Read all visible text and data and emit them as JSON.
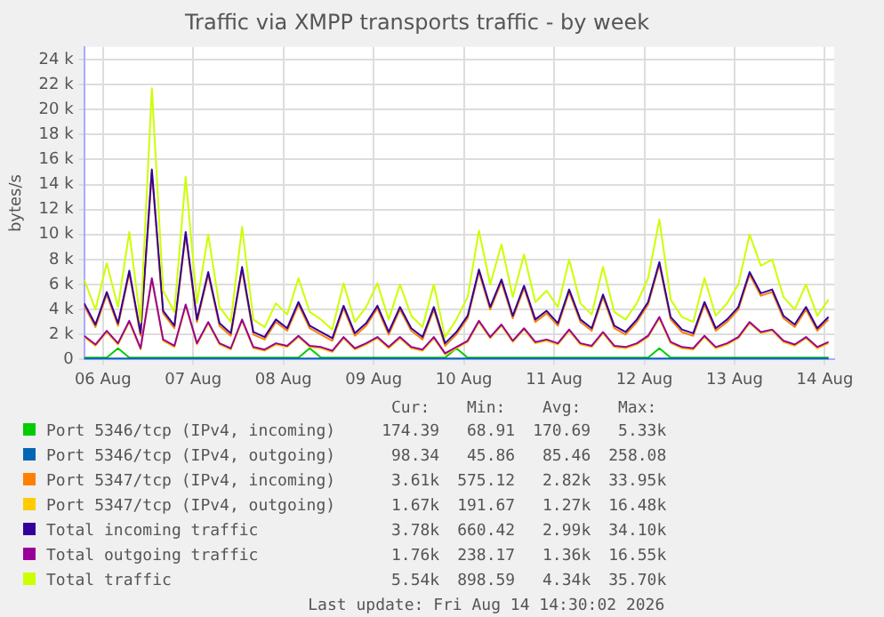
{
  "chart_data": {
    "type": "line",
    "title": "Traffic via XMPP transports traffic - by week",
    "ylabel": "bytes/s",
    "x": [
      "2026-08-06T07:00",
      "2026-08-06T10:00",
      "2026-08-06T13:00",
      "2026-08-06T16:00",
      "2026-08-06T19:00",
      "2026-08-06T22:00",
      "2026-08-07T01:00",
      "2026-08-07T04:00",
      "2026-08-07T07:00",
      "2026-08-07T10:00",
      "2026-08-07T13:00",
      "2026-08-07T16:00",
      "2026-08-07T19:00",
      "2026-08-07T22:00",
      "2026-08-08T01:00",
      "2026-08-08T04:00",
      "2026-08-08T07:00",
      "2026-08-08T10:00",
      "2026-08-08T13:00",
      "2026-08-08T16:00",
      "2026-08-08T19:00",
      "2026-08-08T22:00",
      "2026-08-09T01:00",
      "2026-08-09T04:00",
      "2026-08-09T07:00",
      "2026-08-09T10:00",
      "2026-08-09T13:00",
      "2026-08-09T16:00",
      "2026-08-09T19:00",
      "2026-08-09T22:00",
      "2026-08-10T01:00",
      "2026-08-10T04:00",
      "2026-08-10T07:00",
      "2026-08-10T10:00",
      "2026-08-10T13:00",
      "2026-08-10T16:00",
      "2026-08-10T19:00",
      "2026-08-10T22:00",
      "2026-08-11T01:00",
      "2026-08-11T04:00",
      "2026-08-11T07:00",
      "2026-08-11T10:00",
      "2026-08-11T13:00",
      "2026-08-11T16:00",
      "2026-08-11T19:00",
      "2026-08-11T22:00",
      "2026-08-12T01:00",
      "2026-08-12T04:00",
      "2026-08-12T07:00",
      "2026-08-12T10:00",
      "2026-08-12T13:00",
      "2026-08-12T16:00",
      "2026-08-12T19:00",
      "2026-08-12T22:00",
      "2026-08-13T01:00",
      "2026-08-13T04:00",
      "2026-08-13T07:00",
      "2026-08-13T10:00",
      "2026-08-13T13:00",
      "2026-08-13T16:00",
      "2026-08-13T19:00",
      "2026-08-13T22:00",
      "2026-08-14T01:00",
      "2026-08-14T04:00",
      "2026-08-14T07:00",
      "2026-08-14T10:00",
      "2026-08-14T13:00"
    ],
    "xlim": [
      "2026-08-06T07:00",
      "2026-08-14T14:30"
    ],
    "xticks": [
      {
        "value": "2026-08-06T12:00",
        "label": "06 Aug"
      },
      {
        "value": "2026-08-07T12:00",
        "label": "07 Aug"
      },
      {
        "value": "2026-08-08T12:00",
        "label": "08 Aug"
      },
      {
        "value": "2026-08-09T12:00",
        "label": "09 Aug"
      },
      {
        "value": "2026-08-10T12:00",
        "label": "10 Aug"
      },
      {
        "value": "2026-08-11T12:00",
        "label": "11 Aug"
      },
      {
        "value": "2026-08-12T12:00",
        "label": "12 Aug"
      },
      {
        "value": "2026-08-13T12:00",
        "label": "13 Aug"
      },
      {
        "value": "2026-08-14T12:00",
        "label": "14 Aug"
      }
    ],
    "ylim": [
      0,
      25000
    ],
    "yticks": [
      0,
      {
        "value": 2000,
        "label": "2 k"
      },
      {
        "value": 4000,
        "label": "4 k"
      },
      {
        "value": 6000,
        "label": "6 k"
      },
      {
        "value": 8000,
        "label": "8 k"
      },
      {
        "value": 10000,
        "label": "10 k"
      },
      {
        "value": 12000,
        "label": "12 k"
      },
      {
        "value": 14000,
        "label": "14 k"
      },
      {
        "value": 16000,
        "label": "16 k"
      },
      {
        "value": 18000,
        "label": "18 k"
      },
      {
        "value": 20000,
        "label": "20 k"
      },
      {
        "value": 22000,
        "label": "22 k"
      },
      {
        "value": 24000,
        "label": "24 k"
      }
    ],
    "grid": true,
    "legend": "bottom",
    "series": [
      {
        "name": "Port 5346/tcp (IPv4, incoming)",
        "color": "#00cc00",
        "values": [
          150,
          150,
          150,
          900,
          150,
          150,
          150,
          150,
          150,
          150,
          150,
          150,
          150,
          150,
          150,
          150,
          150,
          150,
          150,
          150,
          900,
          150,
          150,
          150,
          150,
          150,
          150,
          150,
          150,
          150,
          150,
          150,
          150,
          900,
          150,
          150,
          150,
          150,
          150,
          150,
          150,
          150,
          150,
          150,
          150,
          150,
          150,
          150,
          150,
          150,
          150,
          900,
          150,
          150,
          150,
          150,
          150,
          150,
          150,
          150,
          150,
          150,
          150,
          150,
          150,
          150,
          150
        ]
      },
      {
        "name": "Port 5346/tcp (IPv4, outgoing)",
        "color": "#0066b3",
        "values": [
          80,
          80,
          80,
          80,
          80,
          80,
          80,
          80,
          80,
          80,
          80,
          80,
          80,
          80,
          80,
          80,
          80,
          80,
          80,
          80,
          80,
          80,
          80,
          80,
          80,
          80,
          80,
          80,
          80,
          80,
          80,
          80,
          80,
          80,
          80,
          80,
          80,
          80,
          80,
          80,
          80,
          80,
          80,
          80,
          80,
          80,
          80,
          80,
          80,
          80,
          80,
          80,
          80,
          80,
          80,
          80,
          80,
          80,
          80,
          80,
          80,
          80,
          80,
          80,
          80,
          80,
          80
        ]
      },
      {
        "name": "Port 5347/tcp (IPv4, incoming)",
        "color": "#ff8000",
        "values": [
          4300,
          2600,
          5200,
          2700,
          6900,
          1900,
          15000,
          3700,
          2500,
          10000,
          3000,
          6800,
          2700,
          1900,
          7200,
          2000,
          1600,
          3000,
          2300,
          4400,
          2500,
          2000,
          1500,
          4100,
          1900,
          2700,
          4100,
          2000,
          4000,
          2300,
          1600,
          4000,
          1100,
          2000,
          3300,
          7000,
          4000,
          6200,
          3300,
          5700,
          3000,
          3700,
          2700,
          5400,
          3000,
          2300,
          5000,
          2500,
          2000,
          3000,
          4400,
          7600,
          3200,
          2200,
          1900,
          4400,
          2300,
          3000,
          4000,
          6800,
          5100,
          5400,
          3300,
          2600,
          4000,
          2300,
          3200
        ]
      },
      {
        "name": "Port 5347/tcp (IPv4, outgoing)",
        "color": "#ffcc00",
        "values": [
          1800,
          1100,
          2200,
          1200,
          3000,
          800,
          6400,
          1500,
          1000,
          4300,
          1200,
          2900,
          1200,
          800,
          3100,
          900,
          700,
          1200,
          1000,
          1800,
          1000,
          900,
          600,
          1700,
          800,
          1200,
          1700,
          900,
          1700,
          900,
          700,
          1700,
          400,
          900,
          1400,
          3000,
          1700,
          2700,
          1400,
          2400,
          1300,
          1500,
          1200,
          2300,
          1200,
          1000,
          2100,
          1000,
          900,
          1200,
          1800,
          3300,
          1300,
          900,
          800,
          1800,
          900,
          1200,
          1700,
          2900,
          2100,
          2300,
          1400,
          1100,
          1700,
          900,
          1300
        ]
      },
      {
        "name": "Total incoming traffic",
        "color": "#330099",
        "values": [
          4500,
          2800,
          5400,
          2900,
          7100,
          2100,
          15200,
          3900,
          2700,
          10200,
          3200,
          7000,
          2900,
          2100,
          7400,
          2200,
          1800,
          3200,
          2500,
          4600,
          2700,
          2200,
          1700,
          4300,
          2100,
          2900,
          4300,
          2200,
          4200,
          2500,
          1800,
          4200,
          1300,
          2200,
          3500,
          7200,
          4200,
          6400,
          3500,
          5900,
          3200,
          3900,
          2900,
          5600,
          3200,
          2500,
          5200,
          2700,
          2200,
          3200,
          4600,
          7800,
          3400,
          2400,
          2100,
          4600,
          2500,
          3200,
          4200,
          7000,
          5300,
          5600,
          3500,
          2800,
          4200,
          2500,
          3400
        ]
      },
      {
        "name": "Total outgoing traffic",
        "color": "#990099",
        "values": [
          1900,
          1200,
          2300,
          1300,
          3100,
          900,
          6500,
          1600,
          1100,
          4400,
          1300,
          3000,
          1300,
          900,
          3200,
          1000,
          800,
          1300,
          1100,
          1900,
          1100,
          1000,
          700,
          1800,
          900,
          1300,
          1800,
          1000,
          1800,
          1000,
          800,
          1800,
          500,
          1000,
          1500,
          3100,
          1800,
          2800,
          1500,
          2500,
          1400,
          1600,
          1300,
          2400,
          1300,
          1100,
          2200,
          1100,
          1000,
          1300,
          1900,
          3400,
          1400,
          1000,
          900,
          1900,
          1000,
          1300,
          1800,
          3000,
          2200,
          2400,
          1500,
          1200,
          1800,
          1000,
          1400
        ]
      },
      {
        "name": "Total traffic",
        "color": "#ccff00",
        "values": [
          6400,
          4000,
          7700,
          4200,
          10200,
          3000,
          21700,
          5500,
          3800,
          14600,
          4500,
          10000,
          4200,
          3000,
          10600,
          3200,
          2600,
          4500,
          3600,
          6500,
          3800,
          3200,
          2400,
          6100,
          3000,
          4200,
          6100,
          3200,
          6000,
          3500,
          2600,
          6000,
          1800,
          3200,
          5000,
          10300,
          6000,
          9200,
          5000,
          8400,
          4600,
          5500,
          4200,
          8000,
          4500,
          3600,
          7400,
          3800,
          3200,
          4500,
          6500,
          11200,
          4800,
          3400,
          3000,
          6500,
          3500,
          4500,
          6000,
          10000,
          7500,
          8000,
          5000,
          4000,
          6000,
          3500,
          4800
        ]
      }
    ],
    "annotations": [
      "Cur:",
      "Min:",
      "Avg:",
      "Max:",
      "174.39",
      "68.91",
      "170.69",
      "5.33k",
      "98.34",
      "45.86",
      "85.46",
      "258.08",
      "3.61k",
      "575.12",
      "2.82k",
      "33.95k",
      "1.67k",
      "191.67",
      "1.27k",
      "16.48k",
      "3.78k",
      "660.42",
      "2.99k",
      "34.10k",
      "1.76k",
      "238.17",
      "1.36k",
      "16.55k",
      "5.54k",
      "898.59",
      "4.34k",
      "35.70k",
      "Last update: Fri Aug 14 14:30:02 2026"
    ]
  }
}
